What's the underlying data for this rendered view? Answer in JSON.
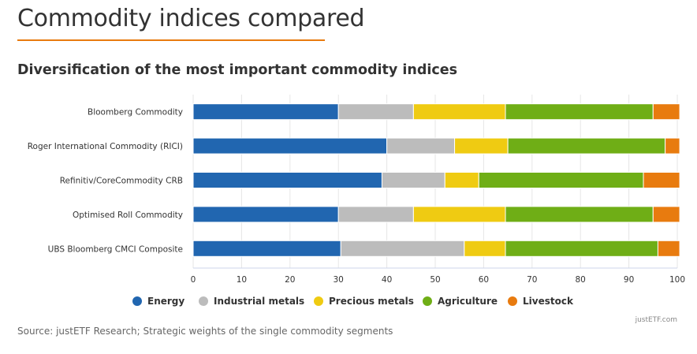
{
  "header": {
    "title": "Commodity indices compared",
    "chart_title": "Diversification of the most important commodity indices"
  },
  "credit": "justETF.com",
  "source": "Source: justETF Research; Strategic weights of the single commodity segments",
  "colors": {
    "accent": "#e87b0f",
    "Energy": "#2166b0",
    "Industrial metals": "#bcbcbc",
    "Precious metals": "#efcb12",
    "Agriculture": "#6fae16",
    "Livestock": "#e87b0f"
  },
  "chart_data": {
    "type": "bar",
    "orientation": "horizontal",
    "stacked": true,
    "categories": [
      "Bloomberg Commodity",
      "Roger International Commodity (RICI)",
      "Refinitiv/CoreCommodity CRB",
      "Optimised Roll Commodity",
      "UBS Bloomberg CMCI Composite"
    ],
    "series": [
      {
        "name": "Energy",
        "values": [
          30,
          40,
          39,
          30,
          30.5
        ]
      },
      {
        "name": "Industrial metals",
        "values": [
          15.5,
          14,
          13,
          15.5,
          25.5
        ]
      },
      {
        "name": "Precious metals",
        "values": [
          19,
          11,
          7,
          19,
          8.5
        ]
      },
      {
        "name": "Agriculture",
        "values": [
          30.5,
          32.5,
          34,
          30.5,
          31.5
        ]
      },
      {
        "name": "Livestock",
        "values": [
          5.5,
          3,
          7.5,
          5.5,
          4.5
        ]
      }
    ],
    "xlim": [
      0,
      100
    ],
    "xticks": [
      0,
      10,
      20,
      30,
      40,
      50,
      60,
      70,
      80,
      90,
      100
    ],
    "grid": true,
    "legend_position": "bottom"
  }
}
